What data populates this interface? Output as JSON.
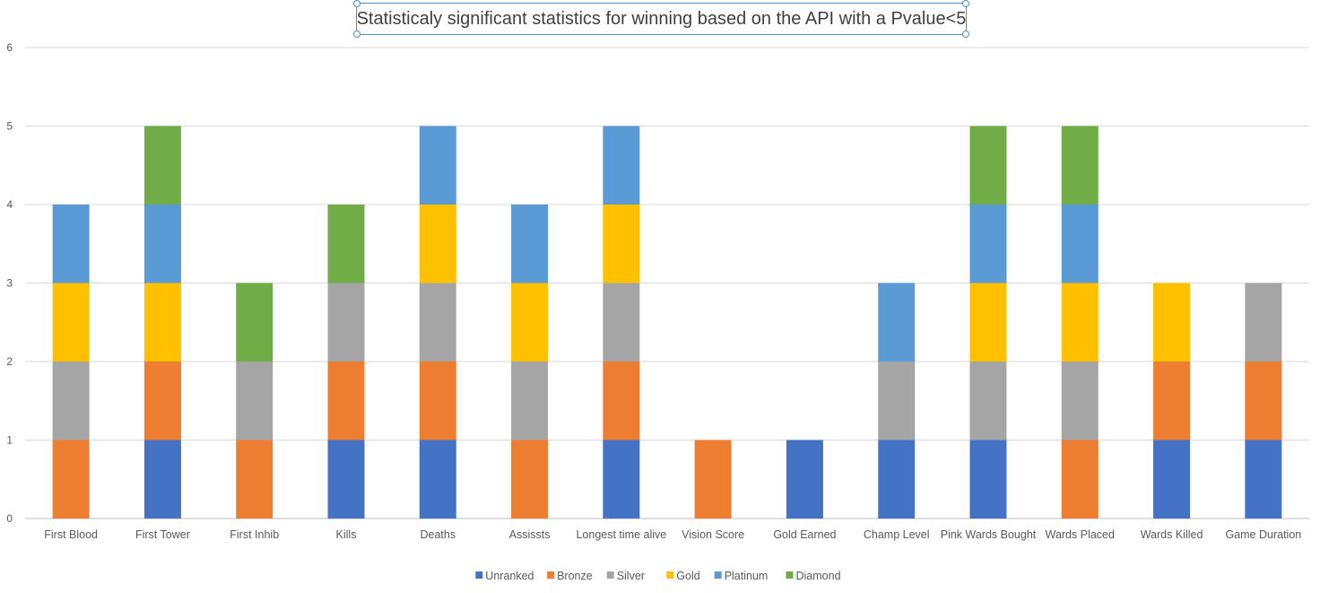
{
  "chart_data": {
    "type": "bar",
    "stacked": true,
    "title": "Statisticaly significant statistics for winning based on the API with a Pvalue<5",
    "categories": [
      "First Blood",
      "First Tower",
      "First Inhib",
      "Kills",
      "Deaths",
      "Assissts",
      "Longest time alive",
      "Vision Score",
      "Gold Earned",
      "Champ Level",
      "Pink Wards Bought",
      "Wards Placed",
      "Wards Killed",
      "Game Duration"
    ],
    "series": [
      {
        "name": "Unranked",
        "color": "#4472C4",
        "values": [
          0,
          1,
          0,
          1,
          1,
          0,
          1,
          0,
          1,
          1,
          1,
          0,
          1,
          1
        ]
      },
      {
        "name": "Bronze",
        "color": "#ED7D31",
        "values": [
          1,
          1,
          1,
          1,
          1,
          1,
          1,
          1,
          0,
          0,
          0,
          1,
          1,
          1
        ]
      },
      {
        "name": "Silver",
        "color": "#A5A5A5",
        "values": [
          1,
          0,
          1,
          1,
          1,
          1,
          1,
          0,
          0,
          1,
          1,
          1,
          0,
          1
        ]
      },
      {
        "name": "Gold",
        "color": "#FFC000",
        "values": [
          1,
          1,
          0,
          0,
          1,
          1,
          1,
          0,
          0,
          0,
          1,
          1,
          1,
          0
        ]
      },
      {
        "name": "Platinum",
        "color": "#5B9BD5",
        "values": [
          1,
          1,
          0,
          0,
          1,
          1,
          1,
          0,
          0,
          1,
          1,
          1,
          0,
          0
        ]
      },
      {
        "name": "Diamond",
        "color": "#70AD47",
        "values": [
          0,
          1,
          1,
          1,
          0,
          0,
          0,
          0,
          0,
          0,
          1,
          1,
          0,
          0
        ]
      }
    ],
    "ylim": [
      0,
      6
    ],
    "yticks": [
      "0",
      "1",
      "2",
      "3",
      "4",
      "5",
      "6"
    ],
    "xlabel": "",
    "ylabel": "",
    "grid": true,
    "legend": "bottom"
  }
}
